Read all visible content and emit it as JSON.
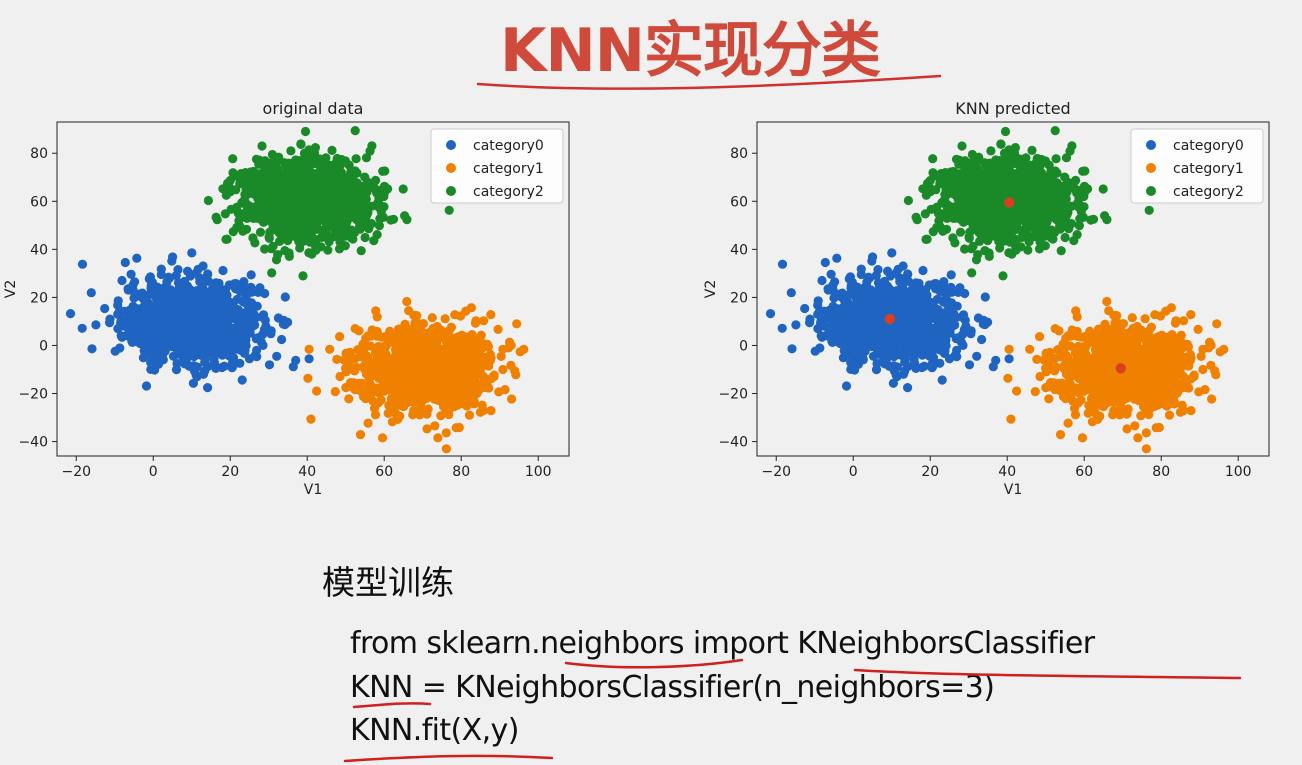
{
  "slide": {
    "title": "KNN实现分类",
    "section_heading": "模型训练",
    "code_lines": [
      "from sklearn.neighbors import KNeighborsClassifier",
      "KNN = KNeighborsClassifier(n_neighbors=3)",
      "KNN.fit(X,y)"
    ],
    "accent_color": "#cf4a3a"
  },
  "chart_data": [
    {
      "type": "scatter",
      "title": "original data",
      "xlabel": "V1",
      "ylabel": "V2",
      "xlim": [
        -25,
        108
      ],
      "ylim": [
        -46,
        93
      ],
      "xticks": [
        -20,
        0,
        20,
        40,
        60,
        80,
        100
      ],
      "yticks": [
        -40,
        -20,
        0,
        20,
        40,
        60,
        80
      ],
      "legend_position": "upper-right",
      "series": [
        {
          "name": "category0",
          "color": "#1f64c0",
          "center": [
            10,
            10
          ],
          "spread": [
            9,
            9
          ]
        },
        {
          "name": "category1",
          "color": "#f08000",
          "center": [
            70,
            -10
          ],
          "spread": [
            9,
            9
          ]
        },
        {
          "name": "category2",
          "color": "#1a8a28",
          "center": [
            40,
            60
          ],
          "spread": [
            9,
            9
          ]
        }
      ]
    },
    {
      "type": "scatter",
      "title": "KNN predicted",
      "xlabel": "V1",
      "ylabel": "V2",
      "xlim": [
        -25,
        108
      ],
      "ylim": [
        -46,
        93
      ],
      "xticks": [
        -20,
        0,
        20,
        40,
        60,
        80,
        100
      ],
      "yticks": [
        -40,
        -20,
        0,
        20,
        40,
        60,
        80
      ],
      "legend_position": "upper-right",
      "series": [
        {
          "name": "category0",
          "color": "#1f64c0",
          "center": [
            10,
            10
          ],
          "spread": [
            9,
            9
          ]
        },
        {
          "name": "category1",
          "color": "#f08000",
          "center": [
            70,
            -10
          ],
          "spread": [
            9,
            9
          ]
        },
        {
          "name": "category2",
          "color": "#1a8a28",
          "center": [
            40,
            60
          ],
          "spread": [
            9,
            9
          ]
        }
      ],
      "centroids": {
        "color": "#d8401f",
        "points": [
          [
            9.5,
            11
          ],
          [
            40.5,
            59.5
          ],
          [
            69.5,
            -9.5
          ]
        ]
      }
    }
  ]
}
